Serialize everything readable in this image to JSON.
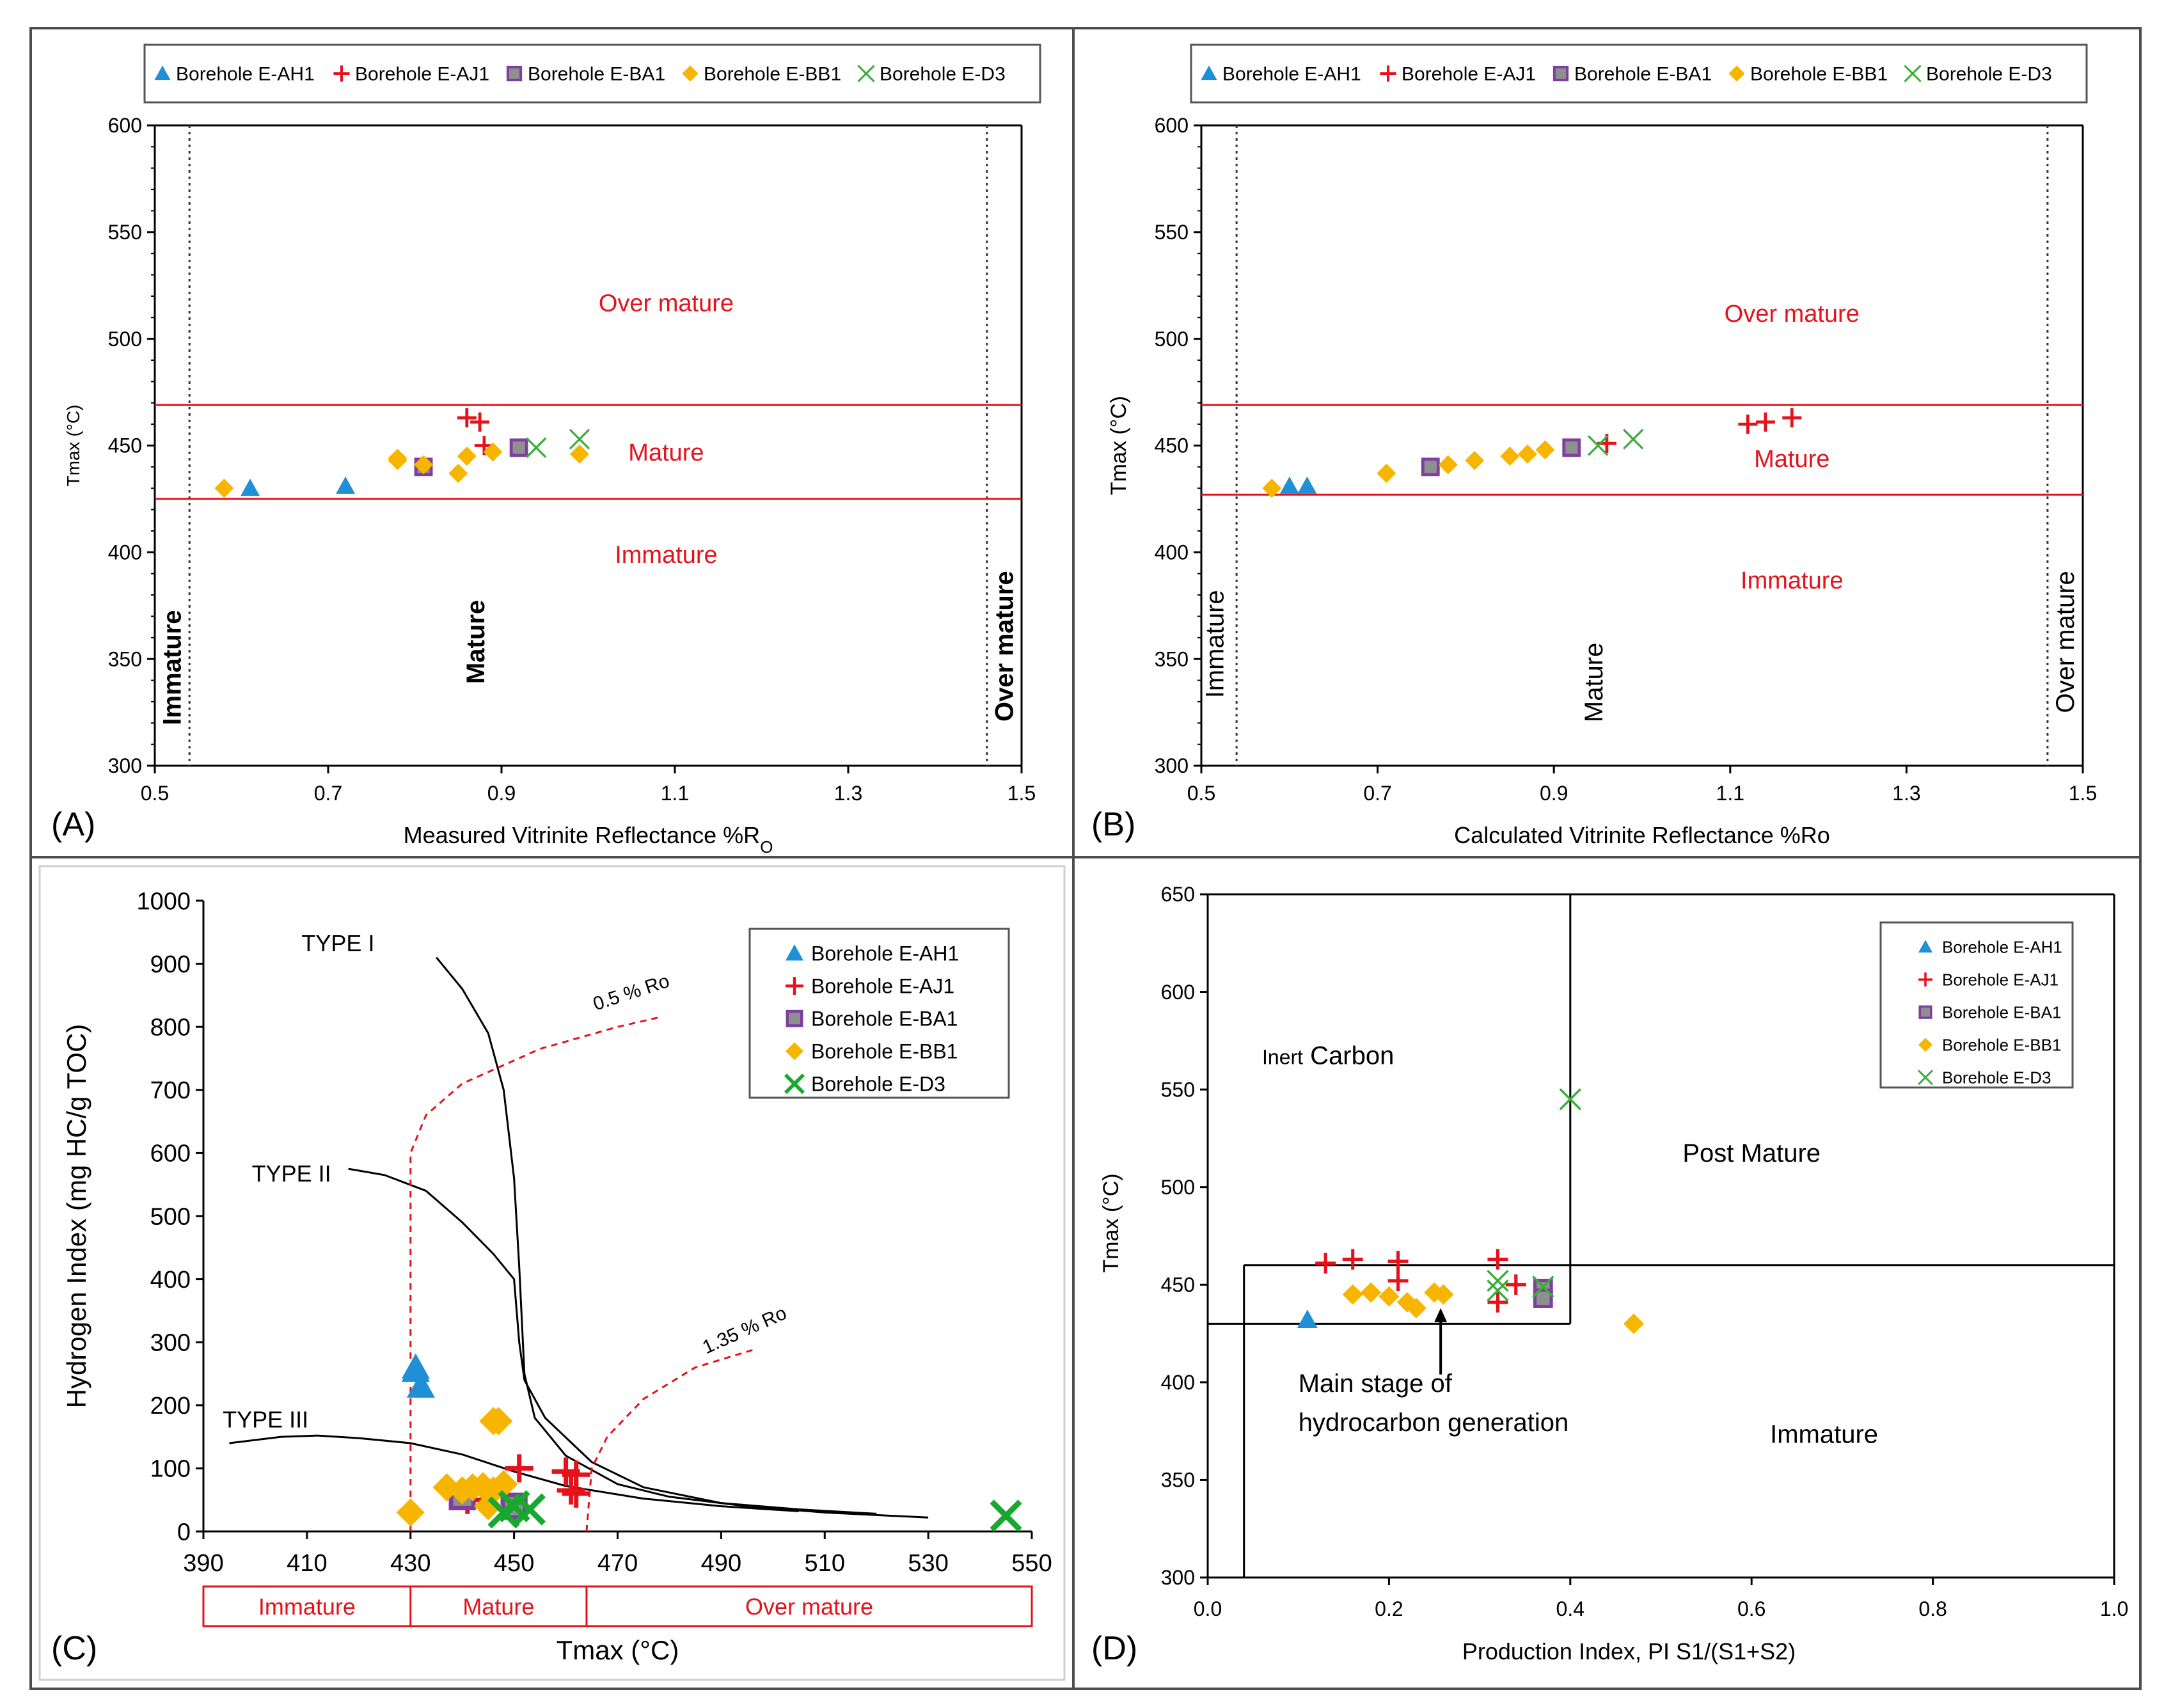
{
  "colors": {
    "ah1": "#1f8fd6",
    "aj1": "#e6111b",
    "ba1": "#7e3fa0",
    "ba1_fill": "#8f8f8f",
    "bb1": "#f7b500",
    "d3a": "#3aad3a",
    "d3c": "#18a830",
    "red": "#e3121b",
    "axis": "#000000",
    "frame": "#4d4d4d"
  },
  "panels": {
    "A": {
      "label": "(A)"
    },
    "B": {
      "label": "(B)"
    },
    "C": {
      "label": "(C)"
    },
    "D": {
      "label": "(D)"
    }
  },
  "chart_data": [
    {
      "id": "A",
      "type": "scatter",
      "title": "",
      "xlabel": "Measured Vitrinite Reflectance %R",
      "xlabel_sub": "O",
      "ylabel": "Tmax (°C)",
      "xlim": [
        0.5,
        1.5
      ],
      "ylim": [
        300,
        600
      ],
      "xticks": [
        "0.5",
        "0.7",
        "0.9",
        "1.1",
        "1.3",
        "1.5"
      ],
      "yticks": [
        "300",
        "350",
        "400",
        "450",
        "500",
        "550",
        "600"
      ],
      "legend": [
        "Borehole E-AH1",
        "Borehole E-AJ1",
        "Borehole E-BA1",
        "Borehole E-BB1",
        "Borehole E-D3"
      ],
      "thresholds_tmax": [
        425,
        469
      ],
      "thresholds_ro": [
        0.54,
        1.46
      ],
      "zone_labels": {
        "over": "Over mature",
        "mature": "Mature",
        "immature": "Immature",
        "v_immature": "Immature",
        "v_mature": "Mature",
        "v_over": "Over mature"
      },
      "series": [
        {
          "name": "Borehole E-AH1",
          "marker": "triangle",
          "points": [
            [
              0.61,
              430
            ],
            [
              0.72,
              431
            ]
          ]
        },
        {
          "name": "Borehole E-AJ1",
          "marker": "plus",
          "points": [
            [
              0.86,
              463
            ],
            [
              0.875,
              461
            ],
            [
              0.88,
              450
            ]
          ]
        },
        {
          "name": "Borehole E-BA1",
          "marker": "square",
          "points": [
            [
              0.81,
              440
            ],
            [
              0.92,
              449
            ]
          ]
        },
        {
          "name": "Borehole E-BB1",
          "marker": "diamond",
          "points": [
            [
              0.58,
              430
            ],
            [
              0.78,
              443
            ],
            [
              0.78,
              444
            ],
            [
              0.81,
              441
            ],
            [
              0.85,
              437
            ],
            [
              0.86,
              445
            ],
            [
              0.89,
              447
            ],
            [
              0.99,
              446
            ]
          ]
        },
        {
          "name": "Borehole E-D3",
          "marker": "x",
          "points": [
            [
              0.94,
              449
            ],
            [
              0.99,
              453
            ]
          ]
        }
      ]
    },
    {
      "id": "B",
      "type": "scatter",
      "title": "",
      "xlabel": "Calculated Vitrinite Reflectance %Ro",
      "ylabel": "Tmax (°C)",
      "xlim": [
        0.5,
        1.5
      ],
      "ylim": [
        300,
        600
      ],
      "xticks": [
        "0.5",
        "0.7",
        "0.9",
        "1.1",
        "1.3",
        "1.5"
      ],
      "yticks": [
        "300",
        "350",
        "400",
        "450",
        "500",
        "550",
        "600"
      ],
      "legend": [
        "Borehole E-AH1",
        "Borehole E-AJ1",
        "Borehole E-BA1",
        "Borehole E-BB1",
        "Borehole E-D3"
      ],
      "thresholds_tmax": [
        427,
        469
      ],
      "thresholds_ro": [
        0.54,
        1.46
      ],
      "zone_labels": {
        "over": "Over mature",
        "mature": "Mature",
        "immature": "Immature",
        "v_immature": "Immature",
        "v_mature": "Mature",
        "v_over": "Over mature"
      },
      "series": [
        {
          "name": "Borehole E-AH1",
          "marker": "triangle",
          "points": [
            [
              0.6,
              431
            ],
            [
              0.62,
              431
            ]
          ]
        },
        {
          "name": "Borehole E-AJ1",
          "marker": "plus",
          "points": [
            [
              0.96,
              451
            ],
            [
              1.12,
              460
            ],
            [
              1.14,
              461
            ],
            [
              1.17,
              463
            ]
          ]
        },
        {
          "name": "Borehole E-BA1",
          "marker": "square",
          "points": [
            [
              0.76,
              440
            ],
            [
              0.92,
              449
            ]
          ]
        },
        {
          "name": "Borehole E-BB1",
          "marker": "diamond",
          "points": [
            [
              0.58,
              430
            ],
            [
              0.71,
              437
            ],
            [
              0.78,
              441
            ],
            [
              0.81,
              443
            ],
            [
              0.85,
              445
            ],
            [
              0.87,
              446
            ],
            [
              0.89,
              448
            ]
          ]
        },
        {
          "name": "Borehole E-D3",
          "marker": "x",
          "points": [
            [
              0.95,
              450
            ],
            [
              0.99,
              453
            ]
          ]
        }
      ]
    },
    {
      "id": "C",
      "type": "scatter",
      "title": "",
      "xlabel": "Tmax (°C)",
      "ylabel": "Hydrogen Index (mg HC/g TOC)",
      "xlim": [
        390,
        550
      ],
      "ylim": [
        0,
        1000
      ],
      "xticks": [
        "390",
        "410",
        "430",
        "450",
        "470",
        "490",
        "510",
        "530",
        "550"
      ],
      "yticks": [
        "0",
        "100",
        "200",
        "300",
        "400",
        "500",
        "600",
        "700",
        "800",
        "900",
        "1000"
      ],
      "legend": [
        "Borehole E-AH1",
        "Borehole E-AJ1",
        "Borehole E-BA1",
        "Borehole E-BB1",
        "Borehole E-D3"
      ],
      "type_labels": [
        "TYPE I",
        "TYPE II",
        "TYPE III"
      ],
      "ro_labels": [
        "0.5 % Ro",
        "1.35 % Ro"
      ],
      "zones": [
        "Immature",
        "Mature",
        "Over mature"
      ],
      "zone_bounds": [
        390,
        430,
        464,
        550
      ],
      "type_curves": [
        {
          "name": "TYPE I",
          "points": [
            [
              435,
              910
            ],
            [
              440,
              860
            ],
            [
              445,
              790
            ],
            [
              448,
              700
            ],
            [
              450,
              560
            ],
            [
              451,
              420
            ],
            [
              452,
              250
            ],
            [
              454,
              180
            ],
            [
              460,
              120
            ],
            [
              470,
              75
            ],
            [
              480,
              55
            ],
            [
              495,
              40
            ],
            [
              510,
              30
            ],
            [
              530,
              22
            ]
          ]
        },
        {
          "name": "TYPE II",
          "points": [
            [
              418,
              575
            ],
            [
              425,
              565
            ],
            [
              433,
              540
            ],
            [
              440,
              490
            ],
            [
              446,
              440
            ],
            [
              450,
              400
            ],
            [
              451,
              300
            ],
            [
              452,
              240
            ],
            [
              456,
              180
            ],
            [
              465,
              110
            ],
            [
              475,
              70
            ],
            [
              490,
              45
            ],
            [
              505,
              35
            ],
            [
              520,
              28
            ]
          ]
        },
        {
          "name": "TYPE III",
          "points": [
            [
              395,
              140
            ],
            [
              405,
              150
            ],
            [
              412,
              152
            ],
            [
              420,
              148
            ],
            [
              430,
              140
            ],
            [
              440,
              122
            ],
            [
              450,
              95
            ],
            [
              460,
              72
            ],
            [
              475,
              52
            ],
            [
              490,
              40
            ],
            [
              505,
              32
            ]
          ]
        }
      ],
      "ro_curves": [
        {
          "name": "0.5 % Ro",
          "points": [
            [
              430,
              0
            ],
            [
              430,
              600
            ],
            [
              433,
              660
            ],
            [
              440,
              710
            ],
            [
              455,
              765
            ],
            [
              470,
              800
            ],
            [
              478,
              815
            ]
          ]
        },
        {
          "name": "1.35 % Ro",
          "points": [
            [
              464,
              0
            ],
            [
              465,
              100
            ],
            [
              468,
              150
            ],
            [
              475,
              210
            ],
            [
              485,
              260
            ],
            [
              497,
              290
            ]
          ]
        }
      ],
      "series": [
        {
          "name": "Borehole E-AH1",
          "marker": "triangle",
          "points": [
            [
              431,
              260
            ],
            [
              431,
              255
            ],
            [
              432,
              230
            ]
          ]
        },
        {
          "name": "Borehole E-AJ1",
          "marker": "plus",
          "points": [
            [
              451,
              100
            ],
            [
              460,
              95
            ],
            [
              462,
              90
            ],
            [
              461,
              65
            ],
            [
              462,
              60
            ],
            [
              441,
              50
            ]
          ]
        },
        {
          "name": "Borehole E-BA1",
          "marker": "square",
          "points": [
            [
              440,
              55
            ],
            [
              450,
              40
            ]
          ]
        },
        {
          "name": "Borehole E-BB1",
          "marker": "diamond",
          "points": [
            [
              430,
              30
            ],
            [
              437,
              70
            ],
            [
              440,
              65
            ],
            [
              442,
              70
            ],
            [
              444,
              72
            ],
            [
              446,
              65
            ],
            [
              448,
              75
            ],
            [
              446,
              175
            ],
            [
              447,
              175
            ],
            [
              445,
              40
            ]
          ]
        },
        {
          "name": "Borehole E-D3",
          "marker": "x",
          "points": [
            [
              448,
              30
            ],
            [
              450,
              40
            ],
            [
              453,
              35
            ],
            [
              545,
              25
            ]
          ]
        }
      ]
    },
    {
      "id": "D",
      "type": "scatter",
      "title": "",
      "xlabel": "Production Index, PI S1/(S1+S2)",
      "ylabel": "Tmax (°C)",
      "xlim": [
        0,
        1.0
      ],
      "ylim": [
        300,
        650
      ],
      "xticks": [
        "0.0",
        "0.2",
        "0.4",
        "0.6",
        "0.8",
        "1.0"
      ],
      "yticks": [
        "300",
        "350",
        "400",
        "450",
        "500",
        "550",
        "600",
        "650"
      ],
      "legend": [
        "Borehole E-AH1",
        "Borehole E-AJ1",
        "Borehole E-BA1",
        "Borehole E-BB1",
        "Borehole E-D3"
      ],
      "regions": {
        "inert_small": "Inert",
        "inert_big": "Carbon",
        "post": "Post Mature",
        "immature": "Immature",
        "main1": "Main stage of",
        "main2": "hydrocarbon generation"
      },
      "box": {
        "pi_min": 0.04,
        "pi_split": 0.4,
        "tmax_low": 430,
        "tmax_high": 460
      },
      "series": [
        {
          "name": "Borehole E-AH1",
          "marker": "triangle",
          "points": [
            [
              0.11,
              432
            ]
          ]
        },
        {
          "name": "Borehole E-AJ1",
          "marker": "plus",
          "points": [
            [
              0.13,
              461
            ],
            [
              0.16,
              463
            ],
            [
              0.21,
              462
            ],
            [
              0.21,
              452
            ],
            [
              0.32,
              463
            ],
            [
              0.32,
              441
            ],
            [
              0.34,
              450
            ]
          ]
        },
        {
          "name": "Borehole E-BA1",
          "marker": "square",
          "points": [
            [
              0.37,
              448
            ],
            [
              0.37,
              443
            ]
          ]
        },
        {
          "name": "Borehole E-BB1",
          "marker": "diamond",
          "points": [
            [
              0.16,
              445
            ],
            [
              0.18,
              446
            ],
            [
              0.2,
              444
            ],
            [
              0.22,
              441
            ],
            [
              0.23,
              438
            ],
            [
              0.25,
              446
            ],
            [
              0.26,
              445
            ],
            [
              0.47,
              430
            ]
          ]
        },
        {
          "name": "Borehole E-D3",
          "marker": "x",
          "points": [
            [
              0.32,
              452
            ],
            [
              0.32,
              447
            ],
            [
              0.37,
              449
            ],
            [
              0.4,
              545
            ]
          ]
        }
      ]
    }
  ]
}
